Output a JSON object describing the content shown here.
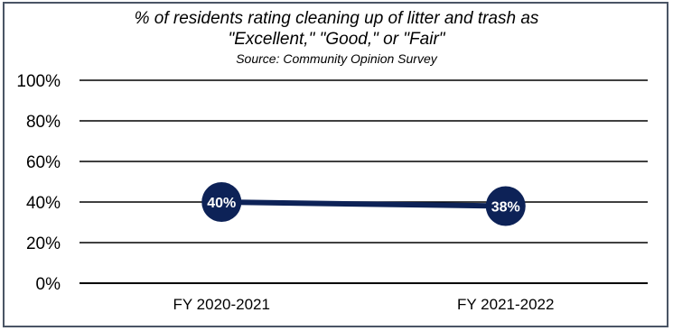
{
  "chart_data": {
    "type": "line",
    "title_line1": "% of residents rating cleaning up of litter and trash as",
    "title_line2": "\"Excellent,\" \"Good,\" or \"Fair\"",
    "subtitle": "Source: Community Opinion Survey",
    "categories": [
      "FY 2020-2021",
      "FY 2021-2022"
    ],
    "values": [
      40,
      38
    ],
    "data_labels": [
      "40%",
      "38%"
    ],
    "y_ticks": [
      "0%",
      "20%",
      "40%",
      "60%",
      "80%",
      "100%"
    ],
    "ylim": [
      0,
      100
    ],
    "grid": true,
    "colors": {
      "series": "#0d2257",
      "marker": "#0d2257",
      "grid": "#000000",
      "frame": "#4a5565"
    }
  }
}
